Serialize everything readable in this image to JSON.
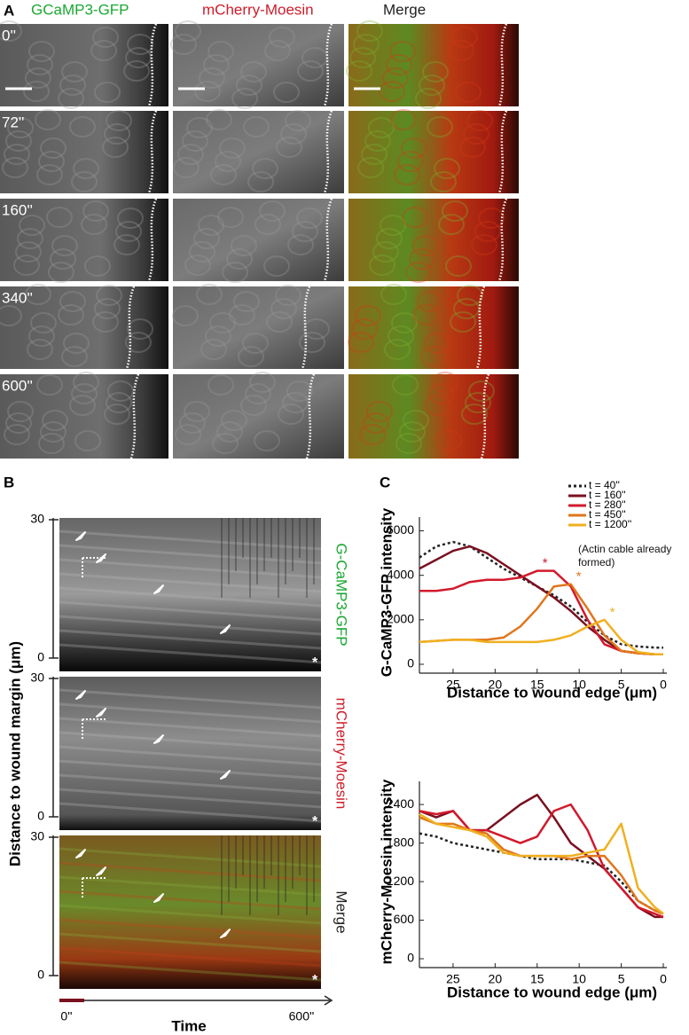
{
  "panel_a": {
    "label": "A",
    "columns": [
      "GCaMP3-GFP",
      "mCherry-Moesin",
      "Merge"
    ],
    "timepoints": [
      "0''",
      "72''",
      "160''",
      "340''",
      "600''"
    ]
  },
  "panel_b": {
    "label": "B",
    "y_label": "Distance to wound margin (μm)",
    "kymographs": [
      {
        "channel": "G-CaMP3-GFP",
        "yticks": [
          30,
          0
        ],
        "corner_mark": "*"
      },
      {
        "channel": "mCherry-Moesin",
        "yticks": [
          30,
          0
        ],
        "corner_mark": "*"
      },
      {
        "channel": "Merge",
        "yticks": [
          30,
          0
        ],
        "corner_mark": "*"
      }
    ],
    "time_start": "0''",
    "time_end": "600''",
    "x_label": "Time"
  },
  "panel_c_label": "C",
  "legend_note": "(Actin cable already formed)",
  "chart_data": [
    {
      "type": "line",
      "y_label": "G-CaMP3-GFP intensity",
      "x_label": "Distance to wound edge (μm)",
      "x": [
        29,
        27,
        25,
        23,
        21,
        19,
        17,
        15,
        13,
        11,
        9,
        7,
        5,
        3,
        1,
        0
      ],
      "xlim": [
        29,
        0
      ],
      "xticks": [
        25,
        20,
        15,
        10,
        5,
        0
      ],
      "ylim": [
        0,
        6300
      ],
      "yticks": [
        0,
        2000,
        4000,
        6000
      ],
      "legend": "top-right",
      "series": [
        {
          "name": "t = 40''",
          "color": "#222222",
          "dashed": true,
          "values": [
            4800,
            5300,
            5500,
            5300,
            4800,
            4300,
            3900,
            3500,
            3100,
            2600,
            1900,
            1300,
            900,
            800,
            750,
            750
          ]
        },
        {
          "name": "t = 160''",
          "color": "#7a1020",
          "values": [
            4300,
            4700,
            5100,
            5300,
            5000,
            4500,
            4000,
            3500,
            3000,
            2400,
            1700,
            1100,
            600,
            500,
            450,
            450
          ]
        },
        {
          "name": "t = 280''",
          "color": "#d2192c",
          "values": [
            3300,
            3300,
            3400,
            3700,
            3800,
            3800,
            3900,
            4200,
            4200,
            3500,
            2000,
            900,
            600,
            500,
            450,
            450
          ]
        },
        {
          "name": "t = 450''",
          "color": "#e0761c",
          "values": [
            1000,
            1050,
            1100,
            1100,
            1100,
            1200,
            1700,
            2500,
            3500,
            3600,
            2500,
            1300,
            600,
            500,
            450,
            450
          ]
        },
        {
          "name": "t = 1200''",
          "color": "#f0b020",
          "values": [
            1000,
            1050,
            1100,
            1100,
            1000,
            1000,
            1000,
            1000,
            1100,
            1300,
            1700,
            2000,
            1100,
            550,
            450,
            450
          ]
        }
      ],
      "annotations": [
        {
          "text": "*",
          "series": 2
        },
        {
          "text": "*",
          "series": 3
        },
        {
          "text": "*",
          "series": 4
        }
      ]
    },
    {
      "type": "line",
      "y_label": "mCherry-Moesin intensity",
      "x_label": "Distance to wound edge (μm)",
      "x": [
        29,
        27,
        25,
        23,
        21,
        19,
        17,
        15,
        13,
        11,
        9,
        7,
        5,
        3,
        1,
        0
      ],
      "xlim": [
        29,
        0
      ],
      "xticks": [
        25,
        20,
        15,
        10,
        5,
        0
      ],
      "ylim": [
        0,
        2650
      ],
      "yticks": [
        0,
        600,
        1200,
        1800,
        2400
      ],
      "series": [
        {
          "color": "#222222",
          "dashed": true,
          "values": [
            1950,
            1900,
            1800,
            1750,
            1700,
            1650,
            1600,
            1550,
            1550,
            1550,
            1500,
            1450,
            1200,
            900,
            750,
            700
          ]
        },
        {
          "color": "#7a1020",
          "values": [
            2300,
            2200,
            2300,
            2000,
            2000,
            2200,
            2400,
            2550,
            2200,
            1800,
            1600,
            1400,
            1100,
            800,
            650,
            650
          ]
        },
        {
          "color": "#d2192c",
          "values": [
            2300,
            2250,
            2300,
            2000,
            2000,
            1900,
            1800,
            1900,
            2300,
            2400,
            2000,
            1400,
            1100,
            800,
            700,
            650
          ]
        },
        {
          "color": "#e0761c",
          "values": [
            2200,
            2100,
            2100,
            2000,
            1950,
            1700,
            1600,
            1600,
            1600,
            1550,
            1600,
            1600,
            1300,
            900,
            750,
            700
          ]
        },
        {
          "color": "#f0b020",
          "values": [
            2250,
            2100,
            2050,
            2000,
            1900,
            1650,
            1600,
            1600,
            1600,
            1600,
            1650,
            1700,
            2100,
            1100,
            800,
            700
          ]
        }
      ]
    }
  ]
}
